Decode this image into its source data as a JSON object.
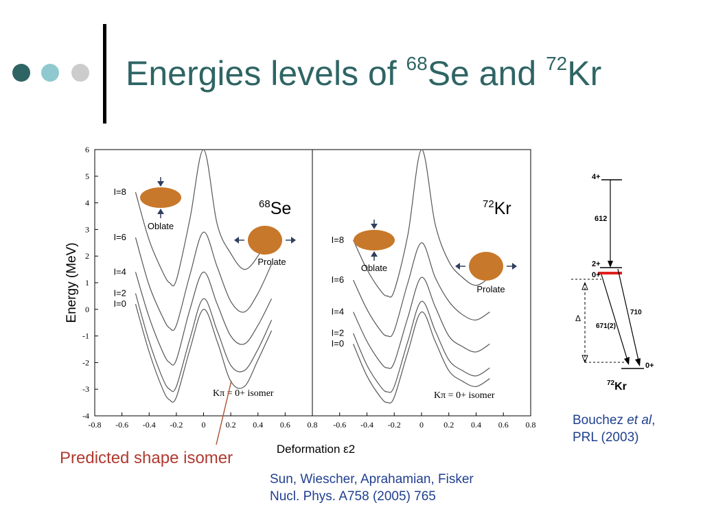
{
  "slide": {
    "title_prefix": "Energies levels of ",
    "title_mass1": "68",
    "title_elem1": "Se and ",
    "title_mass2": "72",
    "title_elem2": "Kr",
    "dot_colors": [
      "#2f6464",
      "#8fc9cf",
      "#cccccc"
    ]
  },
  "chart_data": [
    {
      "type": "line",
      "nucleus_mass": "68",
      "nucleus_symbol": "Se",
      "ylabel": "Energy (MeV)",
      "xlabel": "Deformation ε2",
      "xlim": [
        -0.8,
        0.8
      ],
      "ylim": [
        -4,
        6
      ],
      "xticks": [
        -0.8,
        -0.6,
        -0.4,
        -0.2,
        0,
        0.2,
        0.4,
        0.6,
        0.8
      ],
      "yticks": [
        -4,
        -3,
        -2,
        -1,
        0,
        1,
        2,
        3,
        4,
        5,
        6
      ],
      "x": [
        -0.5,
        -0.4,
        -0.3,
        -0.25,
        -0.2,
        -0.1,
        0,
        0.1,
        0.2,
        0.3,
        0.4,
        0.5
      ],
      "series": [
        {
          "name": "I=0",
          "values": [
            0.2,
            -1.6,
            -3.0,
            -3.4,
            -3.3,
            -1.5,
            0.0,
            -1.2,
            -2.7,
            -2.9,
            -1.9,
            -0.8
          ]
        },
        {
          "name": "I=2",
          "values": [
            0.6,
            -1.2,
            -2.6,
            -3.0,
            -2.9,
            -1.1,
            0.4,
            -0.8,
            -2.1,
            -2.3,
            -1.5,
            -0.4
          ]
        },
        {
          "name": "I=4",
          "values": [
            1.4,
            -0.3,
            -1.6,
            -2.0,
            -1.9,
            0.0,
            1.4,
            0.2,
            -1.0,
            -1.3,
            -0.6,
            0.4
          ]
        },
        {
          "name": "I=6",
          "values": [
            2.7,
            0.9,
            -0.3,
            -0.7,
            -0.6,
            1.3,
            2.9,
            1.6,
            0.3,
            -0.1,
            0.6,
            1.7
          ]
        },
        {
          "name": "I=8",
          "values": [
            4.4,
            2.6,
            1.4,
            1.0,
            1.1,
            3.4,
            6.0,
            3.2,
            2.1,
            1.5,
            2.0,
            3.0
          ]
        }
      ],
      "shape_labels": {
        "oblate": "Oblate",
        "prolate": "Prolate"
      },
      "isomer_label": "Kπ = 0+ isomer"
    },
    {
      "type": "line",
      "nucleus_mass": "72",
      "nucleus_symbol": "Kr",
      "xlim": [
        -0.8,
        0.8
      ],
      "ylim": [
        -4,
        6
      ],
      "xticks": [
        -0.8,
        -0.6,
        -0.4,
        -0.2,
        0,
        0.2,
        0.4,
        0.6,
        0.8
      ],
      "x": [
        -0.5,
        -0.4,
        -0.3,
        -0.25,
        -0.2,
        -0.1,
        0,
        0.1,
        0.2,
        0.3,
        0.4,
        0.5
      ],
      "series": [
        {
          "name": "I=0",
          "values": [
            -1.3,
            -2.5,
            -3.3,
            -3.5,
            -3.3,
            -1.6,
            -0.1,
            -1.2,
            -2.3,
            -2.7,
            -2.9,
            -2.6
          ]
        },
        {
          "name": "I=2",
          "values": [
            -0.9,
            -2.1,
            -2.9,
            -3.1,
            -2.9,
            -1.2,
            0.3,
            -0.8,
            -1.9,
            -2.3,
            -2.5,
            -2.2
          ]
        },
        {
          "name": "I=4",
          "values": [
            -0.1,
            -1.2,
            -2.0,
            -2.2,
            -2.0,
            -0.3,
            1.2,
            0.1,
            -1.0,
            -1.4,
            -1.6,
            -1.3
          ]
        },
        {
          "name": "I=6",
          "values": [
            1.1,
            0.0,
            -0.8,
            -1.0,
            -0.8,
            1.0,
            2.5,
            1.2,
            0.3,
            -0.2,
            -0.4,
            -0.1
          ]
        },
        {
          "name": "I=8",
          "values": [
            2.6,
            1.5,
            0.7,
            0.5,
            0.7,
            2.8,
            6.0,
            3.2,
            1.8,
            1.2,
            0.9,
            1.2
          ]
        }
      ],
      "shape_labels": {
        "oblate": "Oblate",
        "prolate": "Prolate"
      },
      "isomer_label": "Kπ = 0+ isomer"
    }
  ],
  "annotation": {
    "predicted_isomer": "Predicted shape isomer"
  },
  "citation_main": {
    "line1": "Sun, Wiescher, Aprahamian, Fisker",
    "line2": "Nucl. Phys. A758 (2005) 765"
  },
  "level_scheme": {
    "nucleus": "72Kr",
    "levels": {
      "l4": "4+",
      "l2": "2+",
      "l0iso": "0+",
      "l0gs": "0+"
    },
    "transitions": {
      "t612": "612",
      "t710": "710",
      "t671": "671(2)",
      "delta": "Δ"
    },
    "colors": {
      "isomer_level": "#e0201e"
    }
  },
  "citation_side": {
    "author": "Bouchez ",
    "etal": "et al",
    "comma": ",",
    "journal": "PRL (2003)"
  }
}
